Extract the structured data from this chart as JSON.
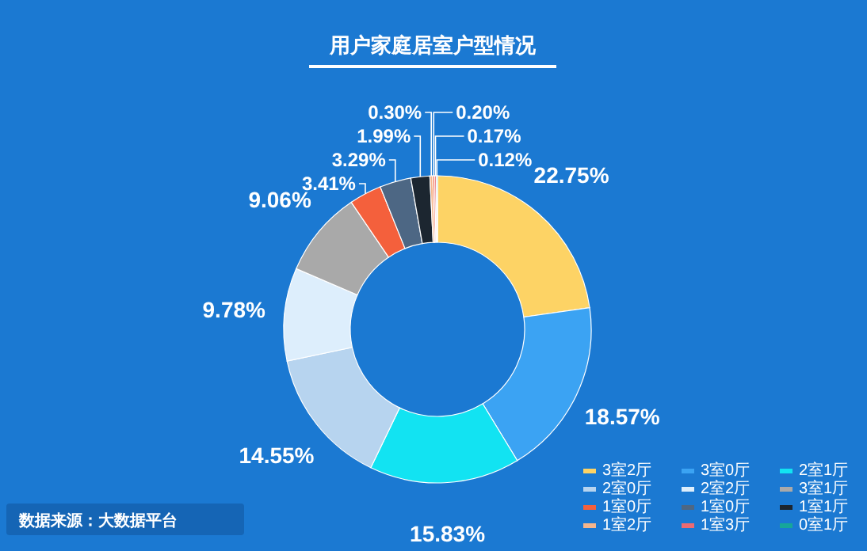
{
  "chart_data": {
    "type": "donut",
    "title": "用户家庭居室户型情况",
    "categories": [
      "3室2厅",
      "3室0厅",
      "2室1厅",
      "2室0厅",
      "2室2厅",
      "3室1厅",
      "1室0厅",
      "1室0厅",
      "1室1厅",
      "1室2厅",
      null,
      "1室3厅",
      "0室1厅"
    ],
    "values": [
      22.75,
      18.57,
      15.83,
      14.55,
      9.78,
      9.06,
      3.41,
      3.29,
      1.99,
      0.3,
      0.2,
      0.17,
      0.12
    ],
    "colors": [
      "#fdd365",
      "#3ba3f3",
      "#12e3f2",
      "#b7d4ef",
      "#ddeefc",
      "#a9a9a9",
      "#f4603c",
      "#4d6784",
      "#1c2630",
      "#f5b58c",
      "#f2603f",
      "#ec6a72",
      "#16a69a"
    ],
    "value_labels": [
      "22.75%",
      "18.57%",
      "15.83%",
      "14.55%",
      "9.78%",
      "9.06%",
      "3.41%",
      "3.29%",
      "1.99%",
      "0.30%",
      "0.20%",
      "0.17%",
      "0.12%"
    ],
    "legend": "bottom right",
    "annotations": [
      "数据来源：大数据平台"
    ]
  }
}
